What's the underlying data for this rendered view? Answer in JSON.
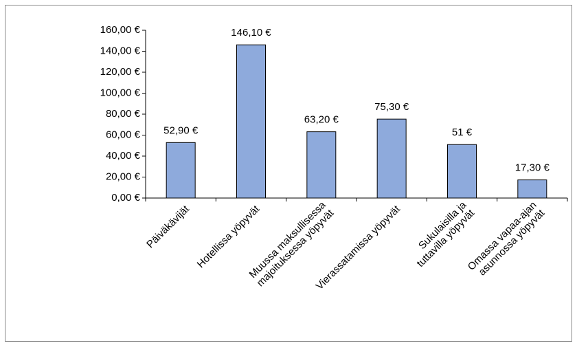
{
  "chart_data": {
    "type": "bar",
    "categories": [
      "Päiväkävijät",
      "Hotellissa yöpyvät",
      "Muussa maksullisessa\nmajoituksessa yöpyvät",
      "Vierassatamissa yöpyvät",
      "Sukulaisilla ja\ntuttavilla yöpyvät",
      "Omassa vapaa-ajan\nasunnossa yöpyvät"
    ],
    "values": [
      52.9,
      146.1,
      63.2,
      75.3,
      51,
      17.3
    ],
    "value_labels": [
      "52,90 €",
      "146,10 €",
      "63,20 €",
      "75,30 €",
      "51 €",
      "17,30 €"
    ],
    "color": "#8eaadc",
    "ylim": [
      0,
      160
    ],
    "yticks": [
      {
        "value": 0,
        "label": "0,00 €"
      },
      {
        "value": 20,
        "label": "20,00 €"
      },
      {
        "value": 40,
        "label": "40,00 €"
      },
      {
        "value": 60,
        "label": "60,00 €"
      },
      {
        "value": 80,
        "label": "80,00 €"
      },
      {
        "value": 100,
        "label": "100,00 €"
      },
      {
        "value": 120,
        "label": "120,00 €"
      },
      {
        "value": 140,
        "label": "140,00 €"
      },
      {
        "value": 160,
        "label": "160,00 €"
      }
    ]
  }
}
